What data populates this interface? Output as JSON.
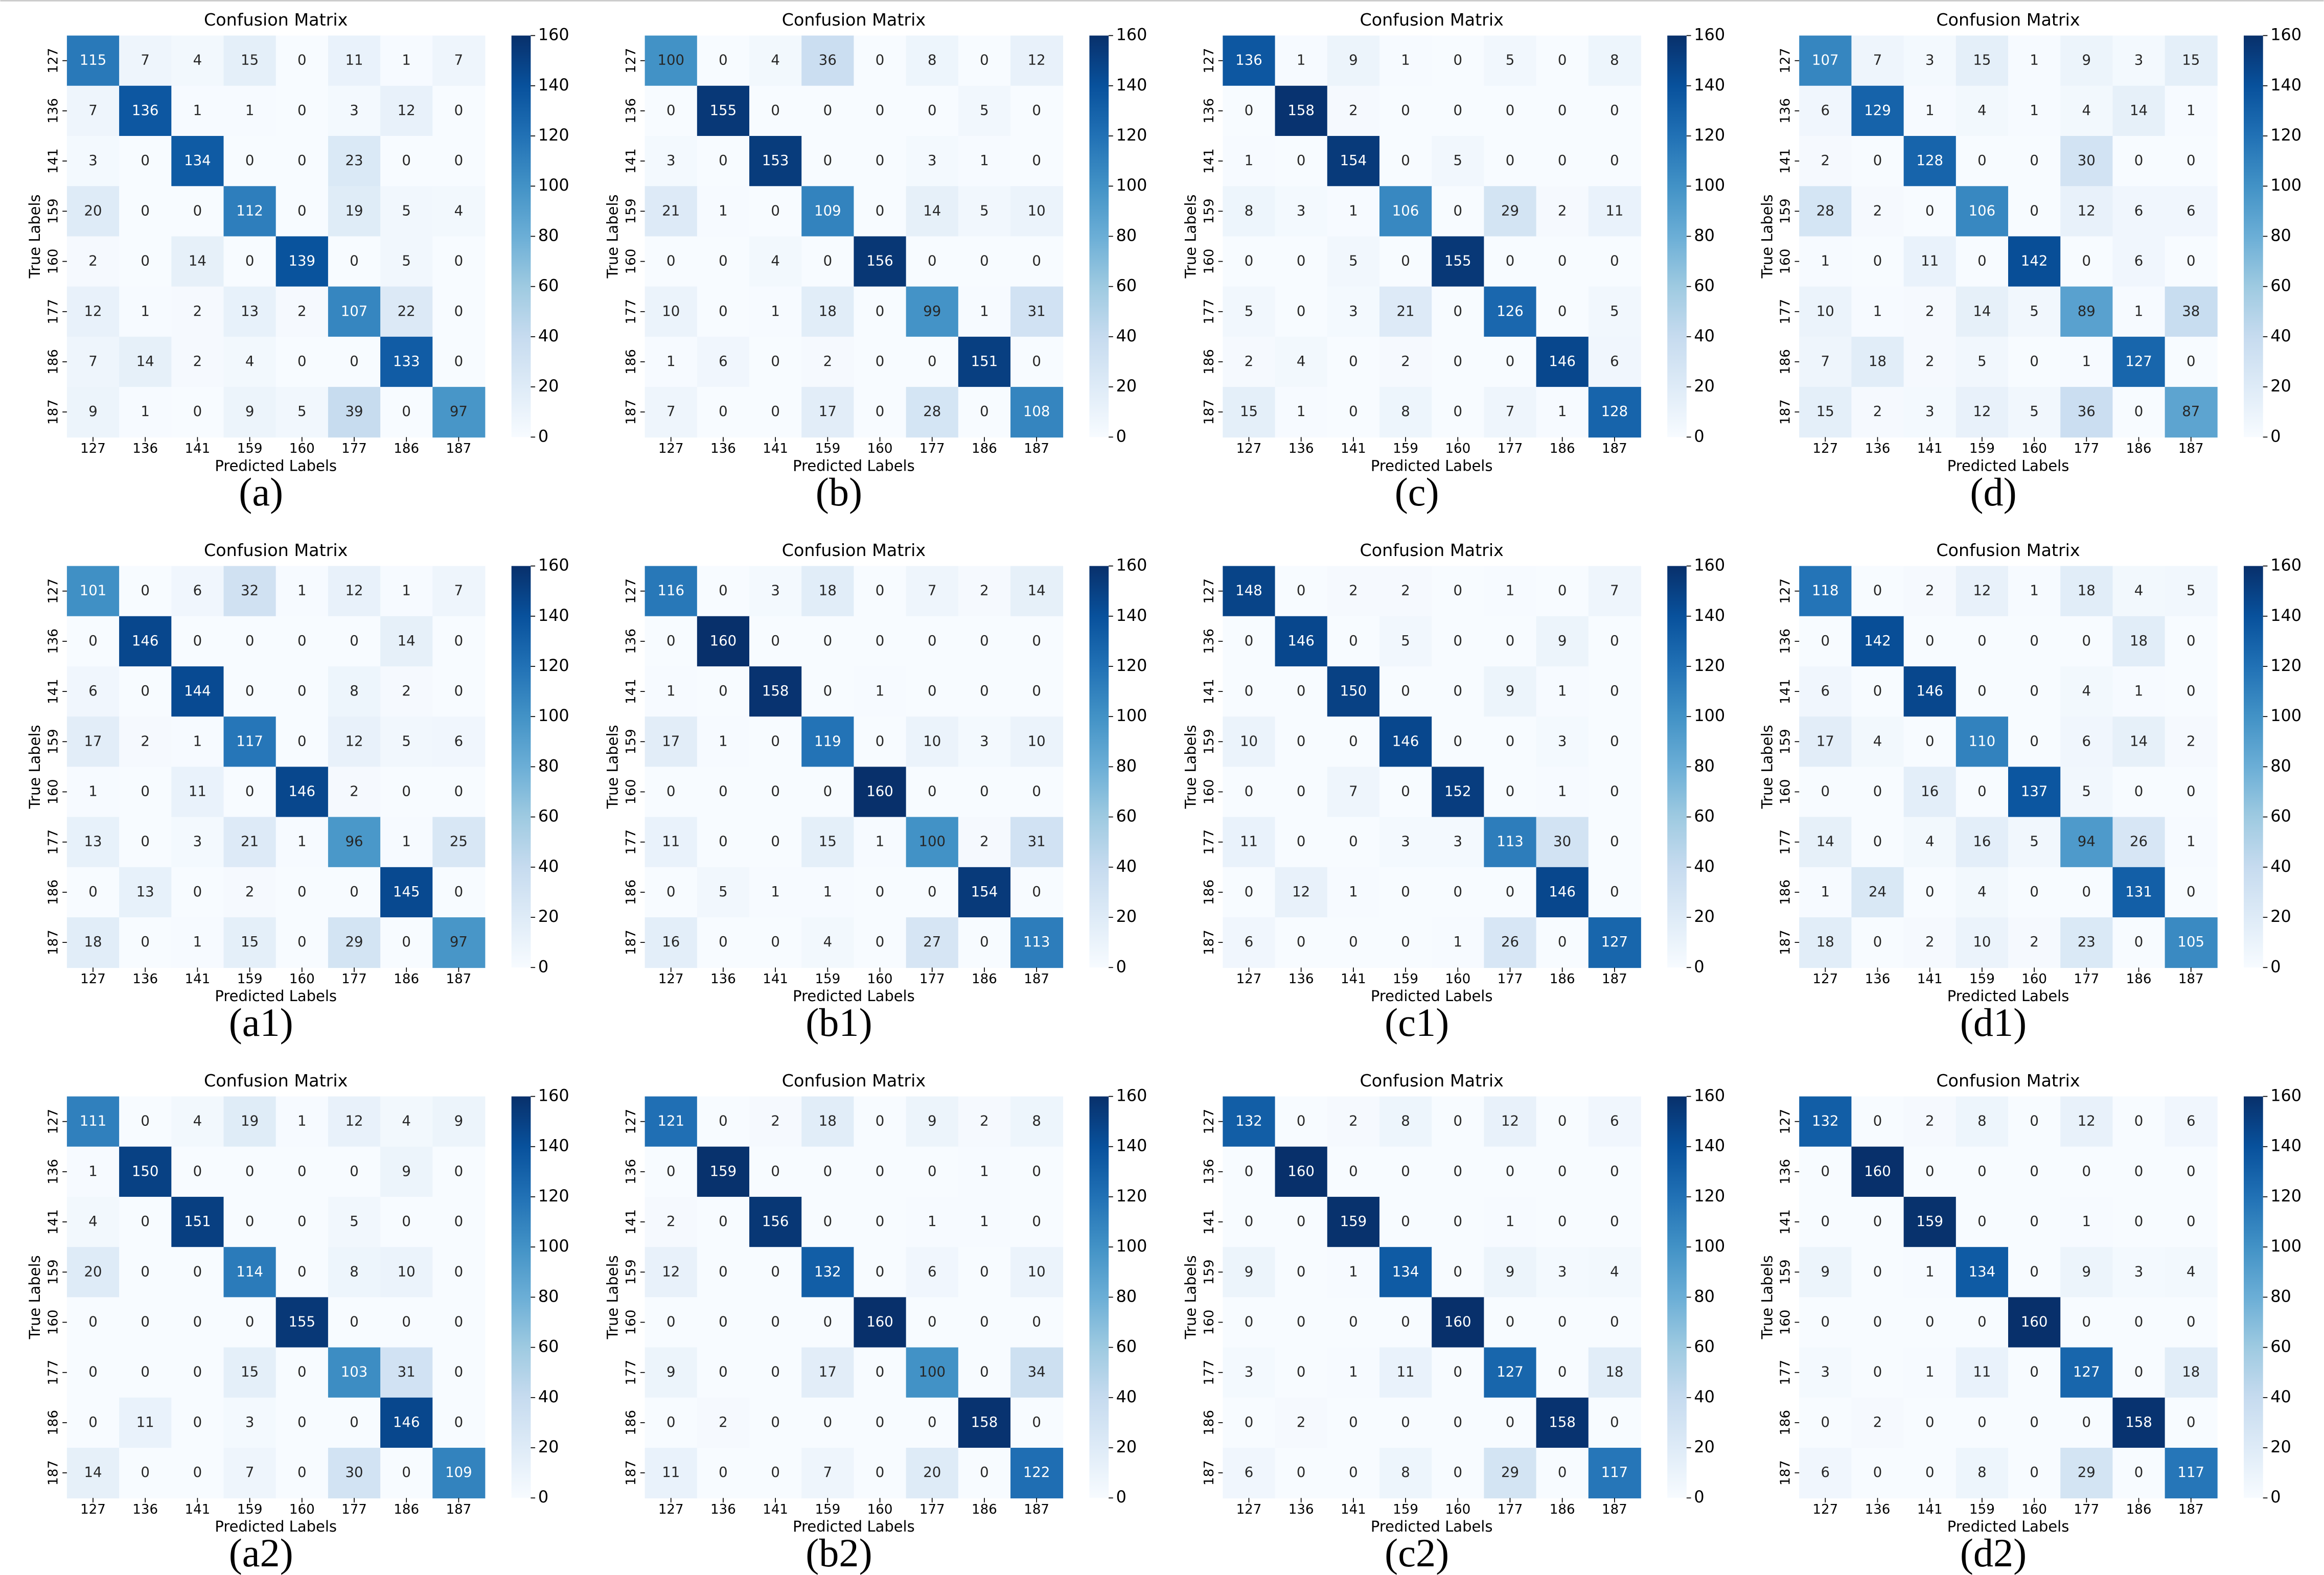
{
  "chart_data": [
    {
      "type": "heatmap",
      "title": "Confusion Matrix",
      "xlabel": "Predicted Labels",
      "ylabel": "True Labels",
      "caption": "(a)",
      "colormap": "Blues",
      "zlim": [
        0,
        160
      ],
      "zticks": [
        0,
        20,
        40,
        60,
        80,
        100,
        120,
        140,
        160
      ],
      "categories": [
        "127",
        "136",
        "141",
        "159",
        "160",
        "177",
        "186",
        "187"
      ],
      "values": [
        [
          115,
          7,
          4,
          15,
          0,
          11,
          1,
          7
        ],
        [
          7,
          136,
          1,
          1,
          0,
          3,
          12,
          0
        ],
        [
          3,
          0,
          134,
          0,
          0,
          23,
          0,
          0
        ],
        [
          20,
          0,
          0,
          112,
          0,
          19,
          5,
          4
        ],
        [
          2,
          0,
          14,
          0,
          139,
          0,
          5,
          0
        ],
        [
          12,
          1,
          2,
          13,
          2,
          107,
          22,
          0
        ],
        [
          7,
          14,
          2,
          4,
          0,
          0,
          133,
          0
        ],
        [
          9,
          1,
          0,
          9,
          5,
          39,
          0,
          97
        ]
      ]
    },
    {
      "type": "heatmap",
      "title": "Confusion Matrix",
      "xlabel": "Predicted Labels",
      "ylabel": "True Labels",
      "caption": "(b)",
      "colormap": "Blues",
      "zlim": [
        0,
        160
      ],
      "zticks": [
        0,
        20,
        40,
        60,
        80,
        100,
        120,
        140,
        160
      ],
      "categories": [
        "127",
        "136",
        "141",
        "159",
        "160",
        "177",
        "186",
        "187"
      ],
      "values": [
        [
          100,
          0,
          4,
          36,
          0,
          8,
          0,
          12
        ],
        [
          0,
          155,
          0,
          0,
          0,
          0,
          5,
          0
        ],
        [
          3,
          0,
          153,
          0,
          0,
          3,
          1,
          0
        ],
        [
          21,
          1,
          0,
          109,
          0,
          14,
          5,
          10
        ],
        [
          0,
          0,
          4,
          0,
          156,
          0,
          0,
          0
        ],
        [
          10,
          0,
          1,
          18,
          0,
          99,
          1,
          31
        ],
        [
          1,
          6,
          0,
          2,
          0,
          0,
          151,
          0
        ],
        [
          7,
          0,
          0,
          17,
          0,
          28,
          0,
          108
        ]
      ]
    },
    {
      "type": "heatmap",
      "title": "Confusion Matrix",
      "xlabel": "Predicted Labels",
      "ylabel": "True Labels",
      "caption": "(c)",
      "colormap": "Blues",
      "zlim": [
        0,
        160
      ],
      "zticks": [
        0,
        20,
        40,
        60,
        80,
        100,
        120,
        140,
        160
      ],
      "categories": [
        "127",
        "136",
        "141",
        "159",
        "160",
        "177",
        "186",
        "187"
      ],
      "values": [
        [
          136,
          1,
          9,
          1,
          0,
          5,
          0,
          8
        ],
        [
          0,
          158,
          2,
          0,
          0,
          0,
          0,
          0
        ],
        [
          1,
          0,
          154,
          0,
          5,
          0,
          0,
          0
        ],
        [
          8,
          3,
          1,
          106,
          0,
          29,
          2,
          11
        ],
        [
          0,
          0,
          5,
          0,
          155,
          0,
          0,
          0
        ],
        [
          5,
          0,
          3,
          21,
          0,
          126,
          0,
          5
        ],
        [
          2,
          4,
          0,
          2,
          0,
          0,
          146,
          6
        ],
        [
          15,
          1,
          0,
          8,
          0,
          7,
          1,
          128
        ]
      ]
    },
    {
      "type": "heatmap",
      "title": "Confusion Matrix",
      "xlabel": "Predicted Labels",
      "ylabel": "True Labels",
      "caption": "(d)",
      "colormap": "Blues",
      "zlim": [
        0,
        160
      ],
      "zticks": [
        0,
        20,
        40,
        60,
        80,
        100,
        120,
        140,
        160
      ],
      "categories": [
        "127",
        "136",
        "141",
        "159",
        "160",
        "177",
        "186",
        "187"
      ],
      "values": [
        [
          107,
          7,
          3,
          15,
          1,
          9,
          3,
          15
        ],
        [
          6,
          129,
          1,
          4,
          1,
          4,
          14,
          1
        ],
        [
          2,
          0,
          128,
          0,
          0,
          30,
          0,
          0
        ],
        [
          28,
          2,
          0,
          106,
          0,
          12,
          6,
          6
        ],
        [
          1,
          0,
          11,
          0,
          142,
          0,
          6,
          0
        ],
        [
          10,
          1,
          2,
          14,
          5,
          89,
          1,
          38
        ],
        [
          7,
          18,
          2,
          5,
          0,
          1,
          127,
          0
        ],
        [
          15,
          2,
          3,
          12,
          5,
          36,
          0,
          87
        ]
      ]
    },
    {
      "type": "heatmap",
      "title": "Confusion Matrix",
      "xlabel": "Predicted Labels",
      "ylabel": "True Labels",
      "caption": "(a1)",
      "colormap": "Blues",
      "zlim": [
        0,
        160
      ],
      "zticks": [
        0,
        20,
        40,
        60,
        80,
        100,
        120,
        140,
        160
      ],
      "categories": [
        "127",
        "136",
        "141",
        "159",
        "160",
        "177",
        "186",
        "187"
      ],
      "values": [
        [
          101,
          0,
          6,
          32,
          1,
          12,
          1,
          7
        ],
        [
          0,
          146,
          0,
          0,
          0,
          0,
          14,
          0
        ],
        [
          6,
          0,
          144,
          0,
          0,
          8,
          2,
          0
        ],
        [
          17,
          2,
          1,
          117,
          0,
          12,
          5,
          6
        ],
        [
          1,
          0,
          11,
          0,
          146,
          2,
          0,
          0
        ],
        [
          13,
          0,
          3,
          21,
          1,
          96,
          1,
          25
        ],
        [
          0,
          13,
          0,
          2,
          0,
          0,
          145,
          0
        ],
        [
          18,
          0,
          1,
          15,
          0,
          29,
          0,
          97
        ]
      ]
    },
    {
      "type": "heatmap",
      "title": "Confusion Matrix",
      "xlabel": "Predicted Labels",
      "ylabel": "True Labels",
      "caption": "(b1)",
      "colormap": "Blues",
      "zlim": [
        0,
        160
      ],
      "zticks": [
        0,
        20,
        40,
        60,
        80,
        100,
        120,
        140,
        160
      ],
      "categories": [
        "127",
        "136",
        "141",
        "159",
        "160",
        "177",
        "186",
        "187"
      ],
      "values": [
        [
          116,
          0,
          3,
          18,
          0,
          7,
          2,
          14
        ],
        [
          0,
          160,
          0,
          0,
          0,
          0,
          0,
          0
        ],
        [
          1,
          0,
          158,
          0,
          1,
          0,
          0,
          0
        ],
        [
          17,
          1,
          0,
          119,
          0,
          10,
          3,
          10
        ],
        [
          0,
          0,
          0,
          0,
          160,
          0,
          0,
          0
        ],
        [
          11,
          0,
          0,
          15,
          1,
          100,
          2,
          31
        ],
        [
          0,
          5,
          1,
          1,
          0,
          0,
          154,
          0
        ],
        [
          16,
          0,
          0,
          4,
          0,
          27,
          0,
          113
        ]
      ]
    },
    {
      "type": "heatmap",
      "title": "Confusion Matrix",
      "xlabel": "Predicted Labels",
      "ylabel": "True Labels",
      "caption": "(c1)",
      "colormap": "Blues",
      "zlim": [
        0,
        160
      ],
      "zticks": [
        0,
        20,
        40,
        60,
        80,
        100,
        120,
        140,
        160
      ],
      "categories": [
        "127",
        "136",
        "141",
        "159",
        "160",
        "177",
        "186",
        "187"
      ],
      "values": [
        [
          148,
          0,
          2,
          2,
          0,
          1,
          0,
          7
        ],
        [
          0,
          146,
          0,
          5,
          0,
          0,
          9,
          0
        ],
        [
          0,
          0,
          150,
          0,
          0,
          9,
          1,
          0
        ],
        [
          10,
          0,
          0,
          146,
          0,
          0,
          3,
          0
        ],
        [
          0,
          0,
          7,
          0,
          152,
          0,
          1,
          0
        ],
        [
          11,
          0,
          0,
          3,
          3,
          113,
          30,
          0
        ],
        [
          0,
          12,
          1,
          0,
          0,
          0,
          146,
          0
        ],
        [
          6,
          0,
          0,
          0,
          1,
          26,
          0,
          127
        ]
      ]
    },
    {
      "type": "heatmap",
      "title": "Confusion Matrix",
      "xlabel": "Predicted Labels",
      "ylabel": "True Labels",
      "caption": "(d1)",
      "colormap": "Blues",
      "zlim": [
        0,
        160
      ],
      "zticks": [
        0,
        20,
        40,
        60,
        80,
        100,
        120,
        140,
        160
      ],
      "categories": [
        "127",
        "136",
        "141",
        "159",
        "160",
        "177",
        "186",
        "187"
      ],
      "values": [
        [
          118,
          0,
          2,
          12,
          1,
          18,
          4,
          5
        ],
        [
          0,
          142,
          0,
          0,
          0,
          0,
          18,
          0
        ],
        [
          6,
          0,
          146,
          0,
          0,
          4,
          1,
          0
        ],
        [
          17,
          4,
          0,
          110,
          0,
          6,
          14,
          2
        ],
        [
          0,
          0,
          16,
          0,
          137,
          5,
          0,
          0
        ],
        [
          14,
          0,
          4,
          16,
          5,
          94,
          26,
          1
        ],
        [
          1,
          24,
          0,
          4,
          0,
          0,
          131,
          0
        ],
        [
          18,
          0,
          2,
          10,
          2,
          23,
          0,
          105
        ]
      ]
    },
    {
      "type": "heatmap",
      "title": "Confusion Matrix",
      "xlabel": "Predicted Labels",
      "ylabel": "True Labels",
      "caption": "(a2)",
      "colormap": "Blues",
      "zlim": [
        0,
        160
      ],
      "zticks": [
        0,
        20,
        40,
        60,
        80,
        100,
        120,
        140,
        160
      ],
      "categories": [
        "127",
        "136",
        "141",
        "159",
        "160",
        "177",
        "186",
        "187"
      ],
      "values": [
        [
          111,
          0,
          4,
          19,
          1,
          12,
          4,
          9
        ],
        [
          1,
          150,
          0,
          0,
          0,
          0,
          9,
          0
        ],
        [
          4,
          0,
          151,
          0,
          0,
          5,
          0,
          0
        ],
        [
          20,
          0,
          0,
          114,
          0,
          8,
          10,
          0
        ],
        [
          0,
          0,
          0,
          0,
          155,
          0,
          0,
          0
        ],
        [
          0,
          0,
          0,
          15,
          0,
          103,
          31,
          0
        ],
        [
          0,
          11,
          0,
          3,
          0,
          0,
          146,
          0
        ],
        [
          14,
          0,
          0,
          7,
          0,
          30,
          0,
          109
        ]
      ]
    },
    {
      "type": "heatmap",
      "title": "Confusion Matrix",
      "xlabel": "Predicted Labels",
      "ylabel": "True Labels",
      "caption": "(b2)",
      "colormap": "Blues",
      "zlim": [
        0,
        160
      ],
      "zticks": [
        0,
        20,
        40,
        60,
        80,
        100,
        120,
        140,
        160
      ],
      "categories": [
        "127",
        "136",
        "141",
        "159",
        "160",
        "177",
        "186",
        "187"
      ],
      "values": [
        [
          121,
          0,
          2,
          18,
          0,
          9,
          2,
          8
        ],
        [
          0,
          159,
          0,
          0,
          0,
          0,
          1,
          0
        ],
        [
          2,
          0,
          156,
          0,
          0,
          1,
          1,
          0
        ],
        [
          12,
          0,
          0,
          132,
          0,
          6,
          0,
          10
        ],
        [
          0,
          0,
          0,
          0,
          160,
          0,
          0,
          0
        ],
        [
          9,
          0,
          0,
          17,
          0,
          100,
          0,
          34
        ],
        [
          0,
          2,
          0,
          0,
          0,
          0,
          158,
          0
        ],
        [
          11,
          0,
          0,
          7,
          0,
          20,
          0,
          122
        ]
      ]
    },
    {
      "type": "heatmap",
      "title": "Confusion Matrix",
      "xlabel": "Predicted Labels",
      "ylabel": "True Labels",
      "caption": "(c2)",
      "colormap": "Blues",
      "zlim": [
        0,
        160
      ],
      "zticks": [
        0,
        20,
        40,
        60,
        80,
        100,
        120,
        140,
        160
      ],
      "categories": [
        "127",
        "136",
        "141",
        "159",
        "160",
        "177",
        "186",
        "187"
      ],
      "values": [
        [
          132,
          0,
          2,
          8,
          0,
          12,
          0,
          6
        ],
        [
          0,
          160,
          0,
          0,
          0,
          0,
          0,
          0
        ],
        [
          0,
          0,
          159,
          0,
          0,
          1,
          0,
          0
        ],
        [
          9,
          0,
          1,
          134,
          0,
          9,
          3,
          4
        ],
        [
          0,
          0,
          0,
          0,
          160,
          0,
          0,
          0
        ],
        [
          3,
          0,
          1,
          11,
          0,
          127,
          0,
          18
        ],
        [
          0,
          2,
          0,
          0,
          0,
          0,
          158,
          0
        ],
        [
          6,
          0,
          0,
          8,
          0,
          29,
          0,
          117
        ]
      ]
    },
    {
      "type": "heatmap",
      "title": "Confusion Matrix",
      "xlabel": "Predicted Labels",
      "ylabel": "True Labels",
      "caption": "(d2)",
      "colormap": "Blues",
      "zlim": [
        0,
        160
      ],
      "zticks": [
        0,
        20,
        40,
        60,
        80,
        100,
        120,
        140,
        160
      ],
      "categories": [
        "127",
        "136",
        "141",
        "159",
        "160",
        "177",
        "186",
        "187"
      ],
      "values": [
        [
          132,
          0,
          2,
          8,
          0,
          12,
          0,
          6
        ],
        [
          0,
          160,
          0,
          0,
          0,
          0,
          0,
          0
        ],
        [
          0,
          0,
          159,
          0,
          0,
          1,
          0,
          0
        ],
        [
          9,
          0,
          1,
          134,
          0,
          9,
          3,
          4
        ],
        [
          0,
          0,
          0,
          0,
          160,
          0,
          0,
          0
        ],
        [
          3,
          0,
          1,
          11,
          0,
          127,
          0,
          18
        ],
        [
          0,
          2,
          0,
          0,
          0,
          0,
          158,
          0
        ],
        [
          6,
          0,
          0,
          8,
          0,
          29,
          0,
          117
        ]
      ]
    }
  ]
}
